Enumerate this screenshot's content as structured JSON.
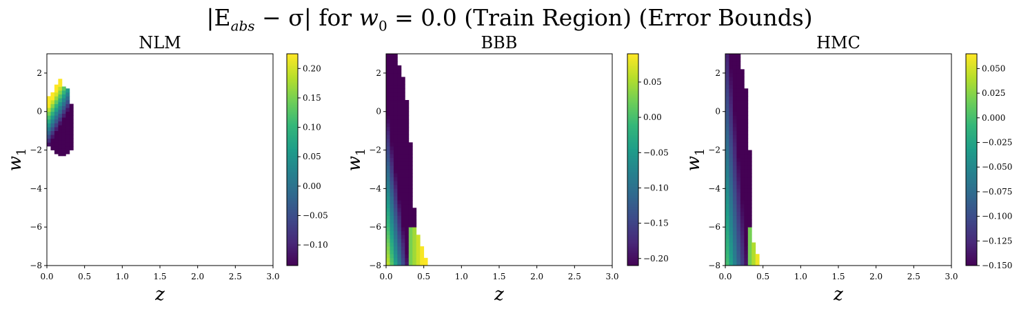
{
  "figure": {
    "title_parts": {
      "pre": "|E",
      "sub": "abs",
      "mid": " − σ| for ",
      "var": "w",
      "var_sub": "0",
      "post": " = 0.0 (Train Region) (Error Bounds)"
    }
  },
  "colors": {
    "viridis": [
      "#440154",
      "#482878",
      "#3e4989",
      "#31688e",
      "#26828e",
      "#1f9e89",
      "#35b779",
      "#6ece58",
      "#b5de2b",
      "#fde725"
    ]
  },
  "chart_data": [
    {
      "type": "heatmap",
      "title": "NLM",
      "xlabel": "z",
      "ylabel_main": "w",
      "ylabel_sub": "1",
      "xlim": [
        0.0,
        3.0
      ],
      "ylim": [
        -8,
        3
      ],
      "xticks": [
        0.0,
        0.5,
        1.0,
        1.5,
        2.0,
        2.5,
        3.0
      ],
      "xtick_labels": [
        "0.0",
        "0.5",
        "1.0",
        "1.5",
        "2.0",
        "2.5",
        "3.0"
      ],
      "yticks": [
        2,
        0,
        -2,
        -4,
        -6,
        -8
      ],
      "ytick_labels": [
        "2",
        "0",
        "−2",
        "−4",
        "−6",
        "−8"
      ],
      "colorbar": {
        "min": -0.135,
        "max": 0.225,
        "ticks": [
          0.2,
          0.15,
          0.1,
          0.05,
          0.0,
          -0.05,
          -0.1
        ],
        "tick_labels": [
          "0.20",
          "0.15",
          "0.10",
          "0.05",
          "0.00",
          "−0.05",
          "−0.10"
        ]
      },
      "cell_size": [
        0.05,
        0.2
      ],
      "region": {
        "columns": [
          {
            "z": 0.0,
            "w1_min": -1.8,
            "w1_max": 0.7
          },
          {
            "z": 0.05,
            "w1_min": -2.0,
            "w1_max": 1.0
          },
          {
            "z": 0.1,
            "w1_min": -2.2,
            "w1_max": 1.3
          },
          {
            "z": 0.15,
            "w1_min": -2.3,
            "w1_max": 1.7
          },
          {
            "z": 0.2,
            "w1_min": -2.3,
            "w1_max": 1.4
          },
          {
            "z": 0.25,
            "w1_min": -2.2,
            "w1_max": 1.1
          },
          {
            "z": 0.3,
            "w1_min": -2.0,
            "w1_max": 0.4
          }
        ],
        "value_model": "center",
        "value_center_w1": -0.8,
        "value_slope_w1": 0.17,
        "value_slope_z": -0.12,
        "value_offset": 0.05
      }
    },
    {
      "type": "heatmap",
      "title": "BBB",
      "xlabel": "z",
      "ylabel_main": "w",
      "ylabel_sub": "1",
      "xlim": [
        0.0,
        3.0
      ],
      "ylim": [
        -8,
        3
      ],
      "xticks": [
        0.0,
        0.5,
        1.0,
        1.5,
        2.0,
        2.5,
        3.0
      ],
      "xtick_labels": [
        "0.0",
        "0.5",
        "1.0",
        "1.5",
        "2.0",
        "2.5",
        "3.0"
      ],
      "yticks": [
        2,
        0,
        -2,
        -4,
        -6,
        -8
      ],
      "ytick_labels": [
        "2",
        "0",
        "−2",
        "−4",
        "−6",
        "−8"
      ],
      "colorbar": {
        "min": -0.21,
        "max": 0.09,
        "ticks": [
          0.05,
          0.0,
          -0.05,
          -0.1,
          -0.15,
          -0.2
        ],
        "tick_labels": [
          "0.05",
          "0.00",
          "−0.05",
          "−0.10",
          "−0.15",
          "−0.20"
        ]
      },
      "cell_size": [
        0.05,
        0.2
      ],
      "region": {
        "columns": [
          {
            "z": 0.0,
            "w1_min": -8,
            "w1_max": 3
          },
          {
            "z": 0.05,
            "w1_min": -8,
            "w1_max": 3
          },
          {
            "z": 0.1,
            "w1_min": -8,
            "w1_max": 3
          },
          {
            "z": 0.15,
            "w1_min": -8,
            "w1_max": 2.4
          },
          {
            "z": 0.2,
            "w1_min": -8,
            "w1_max": 1.8
          },
          {
            "z": 0.25,
            "w1_min": -8,
            "w1_max": 0.6
          },
          {
            "z": 0.3,
            "w1_min": -8,
            "w1_max": -1.6
          },
          {
            "z": 0.35,
            "w1_min": -8,
            "w1_max": -5.0
          },
          {
            "z": 0.4,
            "w1_min": -8,
            "w1_max": -6.4
          },
          {
            "z": 0.45,
            "w1_min": -8,
            "w1_max": -7.0
          },
          {
            "z": 0.5,
            "w1_min": -8,
            "w1_max": -7.6
          }
        ],
        "value_model": "left-edge",
        "value_left": 0.06,
        "value_slope_z": -1.0,
        "value_slope_w1": -0.035,
        "value_floor": -0.21
      }
    },
    {
      "type": "heatmap",
      "title": "HMC",
      "xlabel": "z",
      "ylabel_main": "w",
      "ylabel_sub": "1",
      "xlim": [
        0.0,
        3.0
      ],
      "ylim": [
        -8,
        3
      ],
      "xticks": [
        0.0,
        0.5,
        1.0,
        1.5,
        2.0,
        2.5,
        3.0
      ],
      "xtick_labels": [
        "0.0",
        "0.5",
        "1.0",
        "1.5",
        "2.0",
        "2.5",
        "3.0"
      ],
      "yticks": [
        2,
        0,
        -2,
        -4,
        -6,
        -8
      ],
      "ytick_labels": [
        "2",
        "0",
        "−2",
        "−4",
        "−6",
        "−8"
      ],
      "colorbar": {
        "min": -0.15,
        "max": 0.065,
        "ticks": [
          0.05,
          0.025,
          0.0,
          -0.025,
          -0.05,
          -0.075,
          -0.1,
          -0.125,
          -0.15
        ],
        "tick_labels": [
          "0.050",
          "0.025",
          "0.000",
          "−0.025",
          "−0.050",
          "−0.075",
          "−0.100",
          "−0.125",
          "−0.150"
        ]
      },
      "cell_size": [
        0.05,
        0.2
      ],
      "region": {
        "columns": [
          {
            "z": 0.0,
            "w1_min": -8,
            "w1_max": 3
          },
          {
            "z": 0.05,
            "w1_min": -8,
            "w1_max": 3
          },
          {
            "z": 0.1,
            "w1_min": -8,
            "w1_max": 3
          },
          {
            "z": 0.15,
            "w1_min": -8,
            "w1_max": 3
          },
          {
            "z": 0.2,
            "w1_min": -8,
            "w1_max": 2.2
          },
          {
            "z": 0.25,
            "w1_min": -8,
            "w1_max": 1.2
          },
          {
            "z": 0.3,
            "w1_min": -8,
            "w1_max": -2.0
          },
          {
            "z": 0.35,
            "w1_min": -8,
            "w1_max": -6.8
          },
          {
            "z": 0.4,
            "w1_min": -8,
            "w1_max": -7.4
          }
        ],
        "value_model": "left-edge",
        "value_left": 0.0,
        "value_slope_z": -0.55,
        "value_slope_w1": -0.012,
        "value_floor": -0.15
      }
    }
  ]
}
